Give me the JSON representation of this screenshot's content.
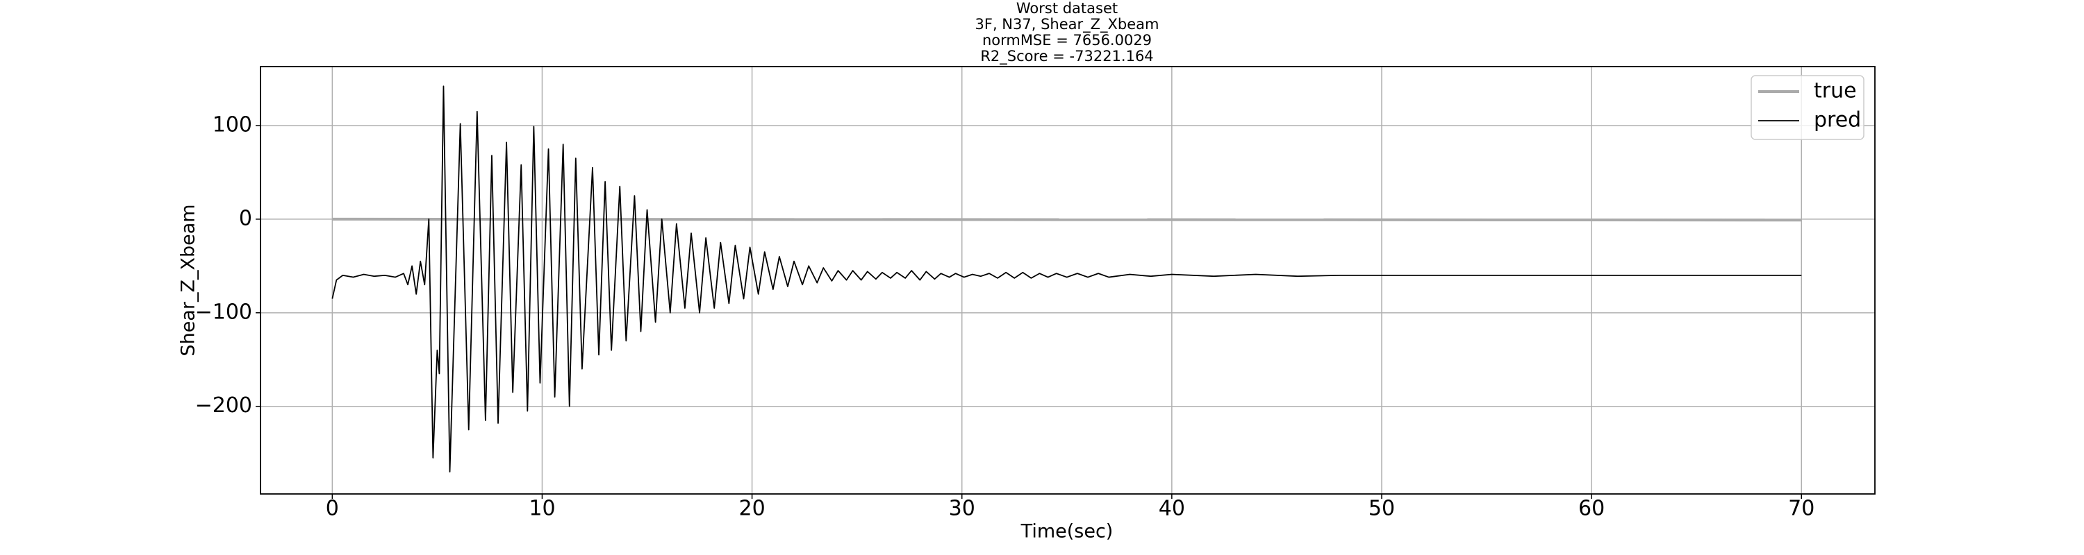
{
  "chart_data": {
    "type": "line",
    "title": [
      "Worst dataset",
      "3F, N37, Shear_Z_Xbeam",
      "normMSE = 7656.0029",
      "R2_Score = -73221.164"
    ],
    "x_label": "Time(sec)",
    "y_label": "Shear_Z_Xbeam",
    "xlim": [
      -3.42,
      73.5
    ],
    "ylim": [
      -293.6,
      163
    ],
    "xticks": [
      0,
      10,
      20,
      30,
      40,
      50,
      60,
      70
    ],
    "yticks": [
      {
        "value": -200,
        "label": "−200"
      },
      {
        "value": -100,
        "label": "−100"
      },
      0,
      100
    ],
    "grid": true,
    "legend": "upper right",
    "series": [
      {
        "name": "true",
        "color": "#aaaaaa",
        "x": [
          0,
          70
        ],
        "values": [
          0,
          -1
        ]
      },
      {
        "name": "pred",
        "color": "#000000",
        "x": [
          0,
          0.2,
          0.5,
          1,
          1.5,
          2,
          2.5,
          3,
          3.4,
          3.6,
          3.8,
          4.0,
          4.2,
          4.4,
          4.6,
          4.8,
          5.0,
          5.1,
          5.3,
          5.6,
          6.1,
          6.5,
          6.9,
          7.3,
          7.6,
          7.9,
          8.3,
          8.6,
          9.0,
          9.3,
          9.6,
          9.9,
          10.3,
          10.6,
          11.0,
          11.3,
          11.6,
          11.9,
          12.4,
          12.7,
          13.0,
          13.3,
          13.7,
          14.0,
          14.4,
          14.7,
          15.0,
          15.4,
          15.7,
          16.1,
          16.4,
          16.8,
          17.1,
          17.5,
          17.8,
          18.2,
          18.5,
          18.9,
          19.2,
          19.6,
          19.9,
          20.3,
          20.6,
          21.0,
          21.3,
          21.7,
          22.0,
          22.4,
          22.7,
          23.1,
          23.4,
          23.8,
          24.1,
          24.5,
          24.8,
          25.2,
          25.5,
          25.9,
          26.2,
          26.6,
          26.9,
          27.3,
          27.6,
          28.0,
          28.3,
          28.7,
          29.0,
          29.4,
          29.7,
          30.1,
          30.5,
          30.9,
          31.3,
          31.7,
          32.1,
          32.5,
          32.9,
          33.3,
          33.7,
          34.1,
          34.5,
          35,
          35.5,
          36,
          36.5,
          37,
          38,
          39,
          40,
          42,
          44,
          46,
          48,
          50,
          60,
          70
        ],
        "values": [
          -85,
          -65,
          -60,
          -62,
          -59,
          -61,
          -60,
          -62,
          -58,
          -70,
          -50,
          -80,
          -45,
          -70,
          0,
          -255,
          -140,
          -165,
          142,
          -270,
          102,
          -225,
          115,
          -215,
          68,
          -218,
          82,
          -185,
          58,
          -205,
          99,
          -175,
          75,
          -190,
          80,
          -200,
          65,
          -160,
          55,
          -145,
          40,
          -140,
          35,
          -130,
          25,
          -120,
          10,
          -110,
          0,
          -100,
          -5,
          -95,
          -15,
          -100,
          -20,
          -95,
          -25,
          -90,
          -28,
          -85,
          -30,
          -80,
          -35,
          -75,
          -40,
          -72,
          -45,
          -70,
          -50,
          -68,
          -52,
          -66,
          -55,
          -65,
          -55,
          -65,
          -56,
          -64,
          -57,
          -63,
          -57,
          -63,
          -55,
          -65,
          -56,
          -64,
          -58,
          -62,
          -58,
          -62,
          -59,
          -61,
          -58,
          -63,
          -57,
          -63,
          -57,
          -63,
          -58,
          -62,
          -58,
          -62,
          -58,
          -62,
          -58,
          -62,
          -59,
          -61,
          -59,
          -61,
          -59,
          -61,
          -60,
          -60,
          -60,
          -60
        ]
      }
    ]
  }
}
